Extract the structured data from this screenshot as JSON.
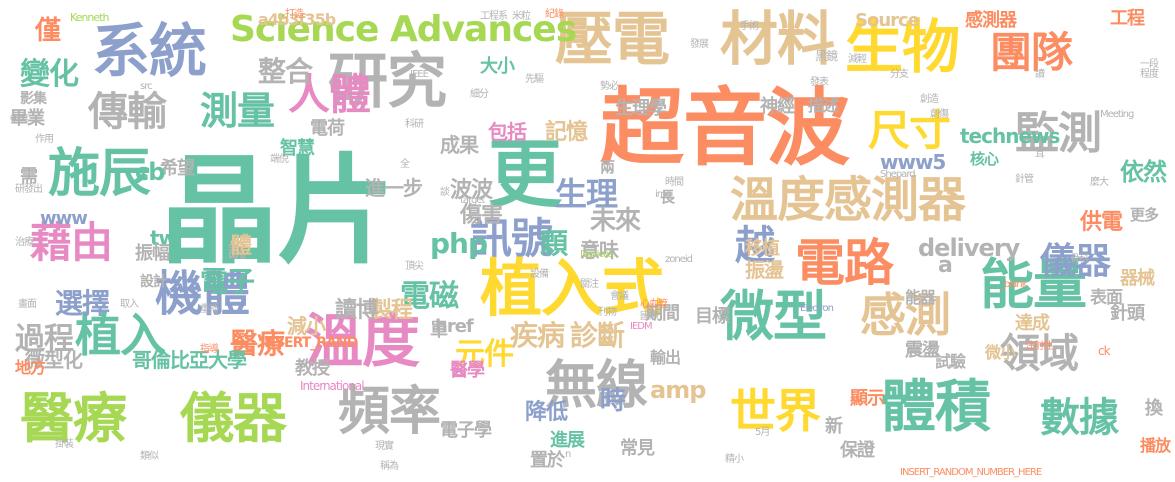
{
  "colors": {
    "background": "#ffffff",
    "teal": "#66c2a5",
    "orange": "#fc8d62",
    "blue": "#8da0cb",
    "pink": "#e78ac3",
    "lime": "#a6d854",
    "yellow": "#ffd92f",
    "tan": "#e5c494",
    "gray": "#b3b3b3"
  },
  "words": [
    {
      "text": "晶片",
      "color": "teal",
      "vertical": false
    },
    {
      "text": "超音波",
      "color": "orange",
      "vertical": false
    },
    {
      "text": "更",
      "color": "teal",
      "vertical": false
    },
    {
      "text": "壓電",
      "color": "tan",
      "vertical": false
    },
    {
      "text": "材料",
      "color": "tan",
      "vertical": false
    },
    {
      "text": "生物",
      "color": "yellow",
      "vertical": false
    },
    {
      "text": "系統",
      "color": "blue",
      "vertical": false
    },
    {
      "text": "研究",
      "color": "gray",
      "vertical": false
    },
    {
      "text": "Science Advances",
      "color": "lime",
      "vertical": false
    },
    {
      "text": "團隊",
      "color": "orange",
      "vertical": false
    },
    {
      "text": "人體",
      "color": "pink",
      "vertical": false
    },
    {
      "text": "尺寸",
      "color": "yellow",
      "vertical": false
    },
    {
      "text": "監測",
      "color": "gray",
      "vertical": false
    },
    {
      "text": "傳輸",
      "color": "gray",
      "vertical": false
    },
    {
      "text": "測量",
      "color": "teal",
      "vertical": false
    },
    {
      "text": "整合",
      "color": "gray",
      "vertical": false
    },
    {
      "text": "施辰",
      "color": "teal",
      "vertical": false
    },
    {
      "text": "溫度感測器",
      "color": "tan",
      "vertical": false
    },
    {
      "text": "電路",
      "color": "orange",
      "vertical": false
    },
    {
      "text": "能量",
      "color": "teal",
      "vertical": false
    },
    {
      "text": "儀器",
      "color": "blue",
      "vertical": false
    },
    {
      "text": "藉由",
      "color": "pink",
      "vertical": false
    },
    {
      "text": "訊號",
      "color": "blue",
      "vertical": false
    },
    {
      "text": "越",
      "color": "blue",
      "vertical": false
    },
    {
      "text": "植入式",
      "color": "yellow",
      "vertical": false
    },
    {
      "text": "機體",
      "color": "blue",
      "vertical": false
    },
    {
      "text": "溫度",
      "color": "pink",
      "vertical": false
    },
    {
      "text": "微型",
      "color": "teal",
      "vertical": false
    },
    {
      "text": "感測",
      "color": "tan",
      "vertical": false
    },
    {
      "text": "植入",
      "color": "teal",
      "vertical": false
    },
    {
      "text": "領域",
      "color": "gray",
      "vertical": false
    },
    {
      "text": "醫療",
      "color": "lime",
      "vertical": false
    },
    {
      "text": "儀器",
      "color": "lime",
      "vertical": false
    },
    {
      "text": "頻率",
      "color": "gray",
      "vertical": false
    },
    {
      "text": "無線",
      "color": "gray",
      "vertical": false
    },
    {
      "text": "世界",
      "color": "yellow",
      "vertical": false
    },
    {
      "text": "體積",
      "color": "teal",
      "vertical": false
    },
    {
      "text": "數據",
      "color": "teal",
      "vertical": false
    },
    {
      "text": "technews",
      "color": "teal",
      "vertical": false
    },
    {
      "text": "www5",
      "color": "blue",
      "vertical": false
    },
    {
      "text": "核心",
      "color": "teal",
      "vertical": false
    },
    {
      "text": "依然",
      "color": "teal",
      "vertical": false
    },
    {
      "text": "供電",
      "color": "orange",
      "vertical": false
    },
    {
      "text": "更多",
      "color": "gray",
      "vertical": false
    },
    {
      "text": "delivery",
      "color": "gray",
      "vertical": false
    },
    {
      "text": "器械",
      "color": "tan",
      "vertical": false
    },
    {
      "text": "表面",
      "color": "gray",
      "vertical": false
    },
    {
      "text": "針頭",
      "color": "gray",
      "vertical": false
    },
    {
      "text": "Source",
      "color": "tan",
      "vertical": false
    },
    {
      "text": "感測器",
      "color": "orange",
      "vertical": false
    },
    {
      "text": "工程",
      "color": "orange",
      "vertical": false
    },
    {
      "text": "生理學",
      "color": "gray",
      "vertical": false
    },
    {
      "text": "神經",
      "color": "gray",
      "vertical": false
    },
    {
      "text": "描述",
      "color": "gray",
      "vertical": false
    },
    {
      "text": "大小",
      "color": "teal",
      "vertical": false
    },
    {
      "text": "電荷",
      "color": "gray",
      "vertical": false
    },
    {
      "text": "包括",
      "color": "pink",
      "vertical": false
    },
    {
      "text": "記憶",
      "color": "tan",
      "vertical": false
    },
    {
      "text": "成果",
      "color": "gray",
      "vertical": false
    },
    {
      "text": "生理",
      "color": "blue",
      "vertical": false
    },
    {
      "text": "未來",
      "color": "gray",
      "vertical": false
    },
    {
      "text": "進一步",
      "color": "gray",
      "vertical": false
    },
    {
      "text": "波波",
      "color": "gray",
      "vertical": false
    },
    {
      "text": "傷害",
      "color": "gray",
      "vertical": false
    },
    {
      "text": "php",
      "color": "teal",
      "vertical": false
    },
    {
      "text": "顆",
      "color": "teal",
      "vertical": false
    },
    {
      "text": "意味",
      "color": "gray",
      "vertical": false
    },
    {
      "text": "移植",
      "color": "tan",
      "vertical": false
    },
    {
      "text": "振盪",
      "color": "tan",
      "vertical": false
    },
    {
      "text": "電子",
      "color": "teal",
      "vertical": false
    },
    {
      "text": "電磁",
      "color": "teal",
      "vertical": false
    },
    {
      "text": "選擇",
      "color": "blue",
      "vertical": false
    },
    {
      "text": "製程",
      "color": "tan",
      "vertical": false
    },
    {
      "text": "讀博",
      "color": "gray",
      "vertical": false
    },
    {
      "text": "醫療",
      "color": "orange",
      "vertical": false
    },
    {
      "text": "過程",
      "color": "gray",
      "vertical": false
    },
    {
      "text": "微型化",
      "color": "gray",
      "vertical": false
    },
    {
      "text": "哥倫比亞大學",
      "color": "teal",
      "vertical": false
    },
    {
      "text": "教授",
      "color": "gray",
      "vertical": false
    },
    {
      "text": "元件",
      "color": "yellow",
      "vertical": false
    },
    {
      "text": "疾病",
      "color": "tan",
      "vertical": false
    },
    {
      "text": "診斷",
      "color": "tan",
      "vertical": false
    },
    {
      "text": "期間",
      "color": "gray",
      "vertical": false
    },
    {
      "text": "目標",
      "color": "gray",
      "vertical": false
    },
    {
      "text": "能器",
      "color": "gray",
      "vertical": false
    },
    {
      "text": "達成",
      "color": "tan",
      "vertical": false
    },
    {
      "text": "微小",
      "color": "tan",
      "vertical": false
    },
    {
      "text": "震盪",
      "color": "gray",
      "vertical": false
    },
    {
      "text": "試驗",
      "color": "gray",
      "vertical": false
    },
    {
      "text": "顯示",
      "color": "orange",
      "vertical": false
    },
    {
      "text": "輸出",
      "color": "gray",
      "vertical": false
    },
    {
      "text": "醫學",
      "color": "pink",
      "vertical": false
    },
    {
      "text": "amp",
      "color": "tan",
      "vertical": false
    },
    {
      "text": "時",
      "color": "blue",
      "vertical": false
    },
    {
      "text": "降低",
      "color": "blue",
      "vertical": false
    },
    {
      "text": "電子學",
      "color": "gray",
      "vertical": false
    },
    {
      "text": "進展",
      "color": "teal",
      "vertical": false
    },
    {
      "text": "常見",
      "color": "gray",
      "vertical": false
    },
    {
      "text": "置於",
      "color": "gray",
      "vertical": false
    },
    {
      "text": "新",
      "color": "gray",
      "vertical": false
    },
    {
      "text": "保證",
      "color": "gray",
      "vertical": false
    },
    {
      "text": "換",
      "color": "gray",
      "vertical": false
    },
    {
      "text": "播放",
      "color": "orange",
      "vertical": false
    },
    {
      "text": "僅",
      "color": "orange",
      "vertical": false
    },
    {
      "text": "變化",
      "color": "teal",
      "vertical": false
    },
    {
      "text": "影集",
      "color": "gray",
      "vertical": false
    },
    {
      "text": "畢業",
      "color": "gray",
      "vertical": false
    },
    {
      "text": "智慧",
      "color": "teal",
      "vertical": false
    },
    {
      "text": "希望",
      "color": "gray",
      "vertical": false
    },
    {
      "text": "www",
      "color": "blue",
      "vertical": false
    },
    {
      "text": "cb",
      "color": "teal",
      "vertical": false
    },
    {
      "text": "tw",
      "color": "teal",
      "vertical": false
    },
    {
      "text": "振幅",
      "color": "gray",
      "vertical": false
    },
    {
      "text": "需",
      "color": "gray",
      "vertical": false
    },
    {
      "text": "說",
      "color": "gray",
      "vertical": false
    },
    {
      "text": "設計",
      "color": "gray",
      "vertical": false
    },
    {
      "text": "體",
      "color": "tan",
      "vertical": false
    },
    {
      "text": "減小",
      "color": "tan",
      "vertical": false
    },
    {
      "text": "單",
      "color": "gray",
      "vertical": false
    },
    {
      "text": "地方",
      "color": "orange",
      "vertical": false
    },
    {
      "text": "長",
      "color": "gray",
      "vertical": false
    },
    {
      "text": "兩",
      "color": "gray",
      "vertical": false
    },
    {
      "text": "a",
      "color": "gray",
      "vertical": false
    },
    {
      "text": "href",
      "color": "gray",
      "vertical": false
    },
    {
      "text": "a4b3f35b",
      "color": "tan",
      "vertical": false
    },
    {
      "text": "Kenneth",
      "color": "lime",
      "vertical": false
    },
    {
      "text": "打造",
      "color": "orange",
      "vertical": false
    },
    {
      "text": "工程系",
      "color": "gray",
      "vertical": false
    },
    {
      "text": "米粒",
      "color": "gray",
      "vertical": false
    },
    {
      "text": "紀錄",
      "color": "orange",
      "vertical": false
    },
    {
      "text": "發展",
      "color": "gray",
      "vertical": false
    },
    {
      "text": "手術",
      "color": "gray",
      "vertical": false
    },
    {
      "text": "黑鏡",
      "color": "gray",
      "vertical": false
    },
    {
      "text": "減輕",
      "color": "gray",
      "vertical": false
    },
    {
      "text": "IEEE",
      "color": "gray",
      "vertical": false
    },
    {
      "text": "先驅",
      "color": "gray",
      "vertical": false
    },
    {
      "text": "細分",
      "color": "gray",
      "vertical": false
    },
    {
      "text": "勢必",
      "color": "gray",
      "vertical": false
    },
    {
      "text": "發表",
      "color": "gray",
      "vertical": false
    },
    {
      "text": "分支",
      "color": "gray",
      "vertical": false
    },
    {
      "text": "Meeting",
      "color": "gray",
      "vertical": false
    },
    {
      "text": "src",
      "color": "gray",
      "vertical": false
    },
    {
      "text": "初衷",
      "color": "gray",
      "vertical": false
    },
    {
      "text": "作用",
      "color": "gray",
      "vertical": false
    },
    {
      "text": "端倪",
      "color": "gray",
      "vertical": false
    },
    {
      "text": "科研",
      "color": "gray",
      "vertical": false
    },
    {
      "text": "研發出",
      "color": "gray",
      "vertical": false
    },
    {
      "text": "治療",
      "color": "gray",
      "vertical": false
    },
    {
      "text": "target",
      "color": "gray",
      "vertical": false
    },
    {
      "text": "頂尖",
      "color": "gray",
      "vertical": false
    },
    {
      "text": "img",
      "color": "gray",
      "vertical": false
    },
    {
      "text": "時間",
      "color": "gray",
      "vertical": false
    },
    {
      "text": "Shepard",
      "color": "gray",
      "vertical": false
    },
    {
      "text": "針管",
      "color": "gray",
      "vertical": false
    },
    {
      "text": "Devices",
      "color": "lime",
      "vertical": false
    },
    {
      "text": "設備",
      "color": "gray",
      "vertical": false
    },
    {
      "text": "zoneid",
      "color": "gray",
      "vertical": false
    },
    {
      "text": "_blank",
      "color": "orange",
      "vertical": false
    },
    {
      "text": "骨科",
      "color": "gray",
      "vertical": false
    },
    {
      "text": "畫面",
      "color": "gray",
      "vertical": false
    },
    {
      "text": "取入",
      "color": "gray",
      "vertical": false
    },
    {
      "text": "重播",
      "color": "gray",
      "vertical": false
    },
    {
      "text": "刊物",
      "color": "gray",
      "vertical": false
    },
    {
      "text": "心血管",
      "color": "orange",
      "vertical": false
    },
    {
      "text": "Electron",
      "color": "blue",
      "vertical": false
    },
    {
      "text": "IEDM",
      "color": "pink",
      "vertical": false
    },
    {
      "text": "INSERT_RAND",
      "color": "orange",
      "vertical": false
    },
    {
      "text": "指導",
      "color": "orange",
      "vertical": false
    },
    {
      "text": "International",
      "color": "pink",
      "vertical": false
    },
    {
      "text": "n",
      "color": "gray",
      "vertical": false
    },
    {
      "text": "INSERT_RANDOM_NUMBER_HERE",
      "color": "orange",
      "vertical": false
    },
    {
      "text": "現實",
      "color": "gray",
      "vertical": false
    },
    {
      "text": "稱為",
      "color": "gray",
      "vertical": false
    },
    {
      "text": "類似",
      "color": "gray",
      "vertical": false
    },
    {
      "text": "ck",
      "color": "orange",
      "vertical": false
    },
    {
      "text": "麼大",
      "color": "gray",
      "vertical": false
    },
    {
      "text": "一段",
      "color": "gray",
      "vertical": false
    },
    {
      "text": "程度",
      "color": "gray",
      "vertical": false
    },
    {
      "text": "注射性",
      "color": "orange",
      "vertical": false
    },
    {
      "text": "會議",
      "color": "gray",
      "vertical": false
    },
    {
      "text": "全",
      "color": "gray",
      "vertical": false
    },
    {
      "text": "談",
      "color": "gray",
      "vertical": false
    },
    {
      "text": "讀",
      "color": "gray",
      "vertical": false
    },
    {
      "text": "創造",
      "color": "gray",
      "vertical": false
    },
    {
      "text": "創傷",
      "color": "gray",
      "vertical": false
    },
    {
      "text": "國際",
      "color": "gray",
      "vertical": false
    },
    {
      "text": "5月",
      "color": "gray",
      "vertical": false
    },
    {
      "text": "精小",
      "color": "gray",
      "vertical": false
    },
    {
      "text": "掛裝",
      "color": "gray",
      "vertical": false
    },
    {
      "text": "耳",
      "color": "gray",
      "vertical": false
    },
    {
      "text": "關注",
      "color": "gray",
      "vertical": false
    }
  ]
}
